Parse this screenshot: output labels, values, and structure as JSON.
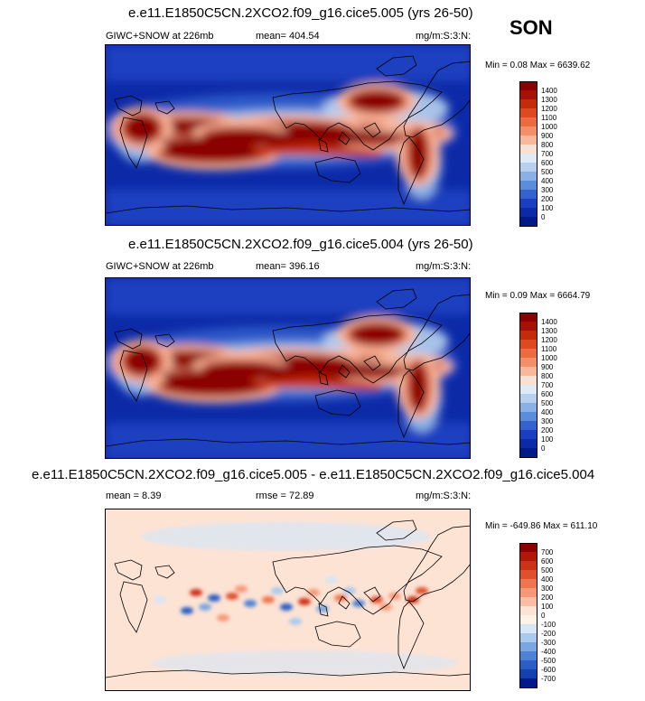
{
  "season": "SON",
  "chart_data": [
    {
      "type": "heatmap",
      "title": "e.e11.E1850C5CN.2XCO2.f09_g16.cice5.005 (yrs 26-50)",
      "left_label": "GIWC+SNOW at 226mb",
      "mean_label": "mean= 404.54",
      "units_label": "mg/m:S:3:N:",
      "minmax_label": "Min =  0.08 Max = 6639.62",
      "min": 0.08,
      "max": 6639.62,
      "mean": 404.54,
      "colorbar_ticks": [
        "1400",
        "1300",
        "1200",
        "1100",
        "1000",
        "900",
        "800",
        "700",
        "600",
        "500",
        "400",
        "300",
        "200",
        "100",
        "0"
      ],
      "colorbar_colors": [
        "#8b0000",
        "#a61104",
        "#c42a0c",
        "#de4a1f",
        "#ee6a40",
        "#f58e68",
        "#f9b89c",
        "#fbe0d1",
        "#dfeaf7",
        "#b7d0f0",
        "#8ab1e6",
        "#5b8ddb",
        "#3463d0",
        "#1a3fc0",
        "#0c2aa8",
        "#001a8c"
      ],
      "colorbar_values": [
        0,
        100,
        200,
        300,
        400,
        500,
        600,
        700,
        800,
        900,
        1000,
        1100,
        1200,
        1300,
        1400
      ]
    },
    {
      "type": "heatmap",
      "title": "e.e11.E1850C5CN.2XCO2.f09_g16.cice5.004 (yrs 26-50)",
      "left_label": "GIWC+SNOW at 226mb",
      "mean_label": "mean= 396.16",
      "units_label": "mg/m:S:3:N:",
      "minmax_label": "Min =  0.09 Max = 6664.79",
      "min": 0.09,
      "max": 6664.79,
      "mean": 396.16,
      "colorbar_ticks": [
        "1400",
        "1300",
        "1200",
        "1100",
        "1000",
        "900",
        "800",
        "700",
        "600",
        "500",
        "400",
        "300",
        "200",
        "100",
        "0"
      ],
      "colorbar_colors": [
        "#8b0000",
        "#a61104",
        "#c42a0c",
        "#de4a1f",
        "#ee6a40",
        "#f58e68",
        "#f9b89c",
        "#fbe0d1",
        "#dfeaf7",
        "#b7d0f0",
        "#8ab1e6",
        "#5b8ddb",
        "#3463d0",
        "#1a3fc0",
        "#0c2aa8",
        "#001a8c"
      ],
      "colorbar_values": [
        0,
        100,
        200,
        300,
        400,
        500,
        600,
        700,
        800,
        900,
        1000,
        1100,
        1200,
        1300,
        1400
      ]
    },
    {
      "type": "heatmap",
      "title": "e.e11.E1850C5CN.2XCO2.f09_g16.cice5.005 - e.e11.E1850C5CN.2XCO2.f09_g16.cice5.004",
      "left_label": "mean =  8.39",
      "mean_label": "rmse =  72.89",
      "units_label": "mg/m:S:3:N:",
      "minmax_label": "Min = -649.86 Max = 611.10",
      "min": -649.86,
      "max": 611.1,
      "mean": 8.39,
      "rmse": 72.89,
      "colorbar_ticks": [
        "700",
        "600",
        "500",
        "400",
        "300",
        "200",
        "100",
        "0",
        "-100",
        "-200",
        "-300",
        "-400",
        "-500",
        "-600",
        "-700"
      ],
      "colorbar_colors": [
        "#8b0000",
        "#b01808",
        "#cc3216",
        "#e0502c",
        "#ef7450",
        "#f69878",
        "#f9bea6",
        "#fde3d4",
        "#fdf2e6",
        "#d6e6f7",
        "#aac9ee",
        "#7aa6e2",
        "#4d82d6",
        "#2a5ec6",
        "#1440b0",
        "#001a8c"
      ],
      "colorbar_values": [
        -700,
        -600,
        -500,
        -400,
        -300,
        -200,
        -100,
        0,
        100,
        200,
        300,
        400,
        500,
        600,
        700
      ]
    }
  ]
}
